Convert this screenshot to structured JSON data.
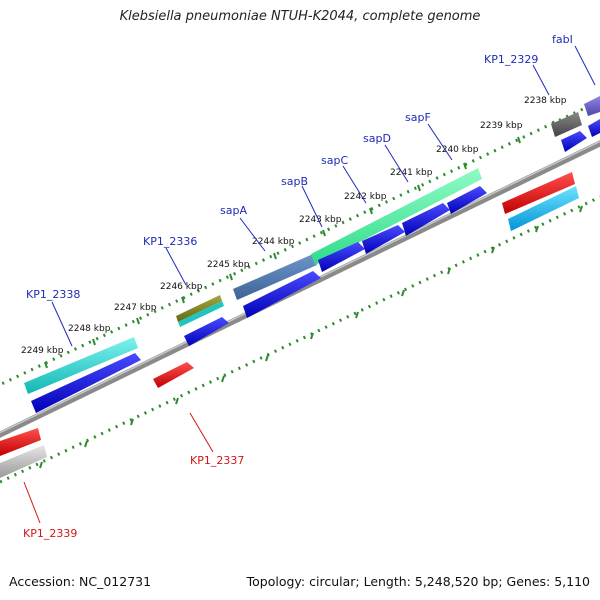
{
  "title": "Klebsiella pneumoniae NTUH-K2044, complete genome",
  "footer": {
    "accession": "Accession: NC_012731",
    "topology": "Topology: circular; Length: 5,248,520 bp; Genes: 5,110"
  },
  "ticks": [
    "2238 kbp",
    "2239 kbp",
    "2240 kbp",
    "2241 kbp",
    "2242 kbp",
    "2243 kbp",
    "2244 kbp",
    "2245 kbp",
    "2246 kbp",
    "2247 kbp",
    "2248 kbp",
    "2249 kbp"
  ],
  "genes": [
    {
      "id": "fabI",
      "label": "fabI",
      "color": "#1f2bb8"
    },
    {
      "id": "KP1_2329",
      "label": "KP1_2329",
      "color": "#1f2bb8"
    },
    {
      "id": "sapF",
      "label": "sapF",
      "color": "#1f2bb8"
    },
    {
      "id": "sapD",
      "label": "sapD",
      "color": "#1f2bb8"
    },
    {
      "id": "sapC",
      "label": "sapC",
      "color": "#1f2bb8"
    },
    {
      "id": "sapB",
      "label": "sapB",
      "color": "#1f2bb8"
    },
    {
      "id": "sapA",
      "label": "sapA",
      "color": "#1f2bb8"
    },
    {
      "id": "KP1_2336",
      "label": "KP1_2336",
      "color": "#1f2bb8"
    },
    {
      "id": "KP1_2338",
      "label": "KP1_2338",
      "color": "#1f2bb8"
    },
    {
      "id": "KP1_2337",
      "label": "KP1_2337",
      "color": "#d01818"
    },
    {
      "id": "KP1_2339",
      "label": "KP1_2339",
      "color": "#d01818"
    }
  ],
  "colors": {
    "cds_forward": "#1010e0",
    "cds_reverse": "#ee1111",
    "tick": "#2e8b2e",
    "backbone": "#8a8a8a"
  }
}
